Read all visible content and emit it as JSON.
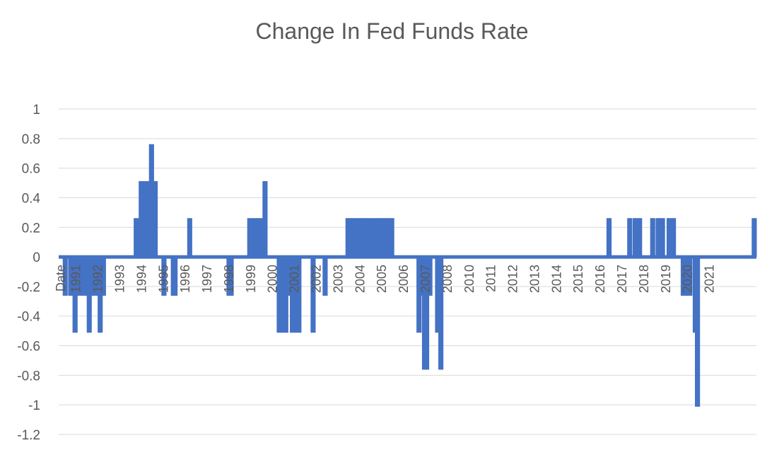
{
  "chart_data": {
    "type": "line",
    "title": "Change In Fed Funds Rate",
    "xlabel": "",
    "ylabel": "",
    "ylim": [
      -1.2,
      1
    ],
    "yticks": [
      1,
      0.8,
      0.6,
      0.4,
      0.2,
      0,
      -0.2,
      -0.4,
      -0.6,
      -0.8,
      -1,
      -1.2
    ],
    "xlim": [
      1990.3,
      2022.25
    ],
    "x_tick_labels": [
      {
        "label": "Date",
        "x": 1990.4
      },
      {
        "label": "1991",
        "x": 1991.1
      },
      {
        "label": "1992",
        "x": 1992.1
      },
      {
        "label": "1993",
        "x": 1993.1
      },
      {
        "label": "1994",
        "x": 1994.1
      },
      {
        "label": "1995",
        "x": 1995.1
      },
      {
        "label": "1996",
        "x": 1996.1
      },
      {
        "label": "1997",
        "x": 1997.1
      },
      {
        "label": "1998",
        "x": 1998.1
      },
      {
        "label": "1999",
        "x": 1999.1
      },
      {
        "label": "2000",
        "x": 2000.1
      },
      {
        "label": "2001",
        "x": 2001.1
      },
      {
        "label": "2002",
        "x": 2002.1
      },
      {
        "label": "2003",
        "x": 2003.1
      },
      {
        "label": "2004",
        "x": 2004.1
      },
      {
        "label": "2005",
        "x": 2005.1
      },
      {
        "label": "2006",
        "x": 2006.1
      },
      {
        "label": "2007",
        "x": 2007.1
      },
      {
        "label": "2008",
        "x": 2008.1
      },
      {
        "label": "2010",
        "x": 2009.1
      },
      {
        "label": "2011",
        "x": 2010.1
      },
      {
        "label": "2012",
        "x": 2011.1
      },
      {
        "label": "2013",
        "x": 2012.1
      },
      {
        "label": "2014",
        "x": 2013.1
      },
      {
        "label": "2015",
        "x": 2014.1
      },
      {
        "label": "2016",
        "x": 2015.1
      },
      {
        "label": "2017",
        "x": 2016.1
      },
      {
        "label": "2018",
        "x": 2017.1
      },
      {
        "label": "2019",
        "x": 2018.1
      },
      {
        "label": "2020",
        "x": 2019.1
      },
      {
        "label": "2021",
        "x": 2020.1
      }
    ],
    "grid": true,
    "legend": "none",
    "series": [
      {
        "color": "#4472c4",
        "changes": [
          {
            "x": 1990.6,
            "y": -0.25
          },
          {
            "x": 1990.85,
            "y": -0.25
          },
          {
            "x": 1991.05,
            "y": -0.5
          },
          {
            "x": 1991.2,
            "y": -0.25
          },
          {
            "x": 1991.4,
            "y": -0.25
          },
          {
            "x": 1991.55,
            "y": -0.25
          },
          {
            "x": 1991.7,
            "y": -0.5
          },
          {
            "x": 1991.85,
            "y": -0.25
          },
          {
            "x": 1992.05,
            "y": -0.25
          },
          {
            "x": 1992.2,
            "y": -0.5
          },
          {
            "x": 1992.35,
            "y": -0.25
          },
          {
            "x": 1993.85,
            "y": 0.25
          },
          {
            "x": 1993.98,
            "y": 0.25
          },
          {
            "x": 1994.08,
            "y": 0.5
          },
          {
            "x": 1994.3,
            "y": 0.5
          },
          {
            "x": 1994.45,
            "y": 0.5
          },
          {
            "x": 1994.55,
            "y": 0.75
          },
          {
            "x": 1994.72,
            "y": 0.5
          },
          {
            "x": 1995.12,
            "y": -0.25
          },
          {
            "x": 1995.55,
            "y": -0.25
          },
          {
            "x": 1995.63,
            "y": -0.25
          },
          {
            "x": 1996.3,
            "y": 0.25
          },
          {
            "x": 1998.1,
            "y": -0.25
          },
          {
            "x": 1998.2,
            "y": -0.25
          },
          {
            "x": 1999.05,
            "y": 0.25
          },
          {
            "x": 1999.2,
            "y": 0.25
          },
          {
            "x": 1999.4,
            "y": 0.25
          },
          {
            "x": 1999.6,
            "y": 0.25
          },
          {
            "x": 1999.75,
            "y": 0.5
          },
          {
            "x": 2000.4,
            "y": -0.5
          },
          {
            "x": 2000.55,
            "y": -0.5
          },
          {
            "x": 2000.7,
            "y": -0.5
          },
          {
            "x": 2000.8,
            "y": -0.25
          },
          {
            "x": 2000.9,
            "y": -0.25
          },
          {
            "x": 2001.0,
            "y": -0.5
          },
          {
            "x": 2001.15,
            "y": -0.5
          },
          {
            "x": 2001.3,
            "y": -0.5
          },
          {
            "x": 2001.95,
            "y": -0.5
          },
          {
            "x": 2002.5,
            "y": -0.25
          },
          {
            "x": 2003.55,
            "y": 0.25
          },
          {
            "x": 2003.68,
            "y": 0.25
          },
          {
            "x": 2003.8,
            "y": 0.25
          },
          {
            "x": 2003.92,
            "y": 0.25
          },
          {
            "x": 2004.05,
            "y": 0.25
          },
          {
            "x": 2004.18,
            "y": 0.25
          },
          {
            "x": 2004.3,
            "y": 0.25
          },
          {
            "x": 2004.42,
            "y": 0.25
          },
          {
            "x": 2004.55,
            "y": 0.25
          },
          {
            "x": 2004.68,
            "y": 0.25
          },
          {
            "x": 2004.8,
            "y": 0.25
          },
          {
            "x": 2004.92,
            "y": 0.25
          },
          {
            "x": 2005.05,
            "y": 0.25
          },
          {
            "x": 2005.18,
            "y": 0.25
          },
          {
            "x": 2005.3,
            "y": 0.25
          },
          {
            "x": 2005.42,
            "y": 0.25
          },
          {
            "x": 2005.55,
            "y": 0.25
          },
          {
            "x": 2006.8,
            "y": -0.5
          },
          {
            "x": 2006.95,
            "y": -0.25
          },
          {
            "x": 2007.05,
            "y": -0.75
          },
          {
            "x": 2007.15,
            "y": -0.75
          },
          {
            "x": 2007.3,
            "y": -0.25
          },
          {
            "x": 2007.65,
            "y": -0.5
          },
          {
            "x": 2007.8,
            "y": -0.75
          },
          {
            "x": 2015.5,
            "y": 0.25
          },
          {
            "x": 2016.45,
            "y": 0.25
          },
          {
            "x": 2016.7,
            "y": 0.25
          },
          {
            "x": 2016.9,
            "y": 0.25
          },
          {
            "x": 2017.5,
            "y": 0.25
          },
          {
            "x": 2017.75,
            "y": 0.25
          },
          {
            "x": 2017.95,
            "y": 0.25
          },
          {
            "x": 2018.25,
            "y": 0.25
          },
          {
            "x": 2018.45,
            "y": 0.25
          },
          {
            "x": 2018.9,
            "y": -0.25
          },
          {
            "x": 2019.05,
            "y": -0.25
          },
          {
            "x": 2019.2,
            "y": -0.25
          },
          {
            "x": 2019.45,
            "y": -0.5
          },
          {
            "x": 2019.55,
            "y": -1.0
          },
          {
            "x": 2022.15,
            "y": 0.25
          }
        ]
      }
    ]
  }
}
